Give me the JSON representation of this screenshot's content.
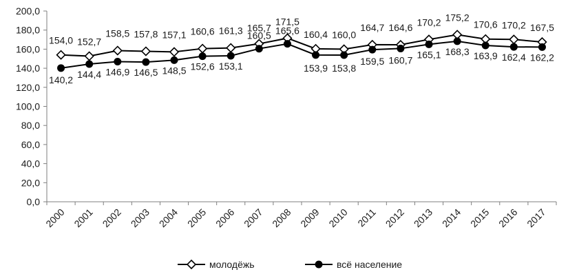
{
  "chart_data": {
    "type": "line",
    "title": "",
    "xlabel": "",
    "ylabel": "",
    "categories": [
      "2000",
      "2001",
      "2002",
      "2003",
      "2004",
      "2005",
      "2006",
      "2007",
      "2008",
      "2009",
      "2010",
      "2011",
      "2012",
      "2013",
      "2014",
      "2015",
      "2016",
      "2017"
    ],
    "ylim": [
      0,
      200
    ],
    "yticks": [
      "0,0",
      "20,0",
      "40,0",
      "60,0",
      "80,0",
      "100,0",
      "120,0",
      "140,0",
      "160,0",
      "180,0",
      "200,0"
    ],
    "grid": false,
    "legend_position": "bottom",
    "series": [
      {
        "name": "молодёжь",
        "marker": "diamond-open",
        "color": "#000000",
        "values": [
          154.0,
          152.7,
          158.5,
          157.8,
          157.1,
          160.6,
          161.3,
          165.7,
          171.5,
          160.4,
          160.0,
          164.7,
          164.6,
          170.2,
          175.2,
          170.6,
          170.2,
          167.5
        ],
        "labels": [
          "154,0",
          "152,7",
          "158,5",
          "157,8",
          "157,1",
          "160,6",
          "161,3",
          "165,7",
          "171,5",
          "160,4",
          "160,0",
          "164,7",
          "164,6",
          "170,2",
          "175,2",
          "170,6",
          "170,2",
          "167,5"
        ]
      },
      {
        "name": "всё население",
        "marker": "circle-filled",
        "color": "#000000",
        "values": [
          140.2,
          144.4,
          146.9,
          146.5,
          148.5,
          152.6,
          153.1,
          160.5,
          165.6,
          153.9,
          153.8,
          159.5,
          160.7,
          165.1,
          168.3,
          163.9,
          162.4,
          162.2
        ],
        "labels": [
          "140,2",
          "144,4",
          "146,9",
          "146,5",
          "148,5",
          "152,6",
          "153,1",
          "160,5",
          "165,6",
          "153,9",
          "153,8",
          "159,5",
          "160,7",
          "165,1",
          "168,3",
          "163,9",
          "162,4",
          "162,2"
        ]
      }
    ]
  }
}
